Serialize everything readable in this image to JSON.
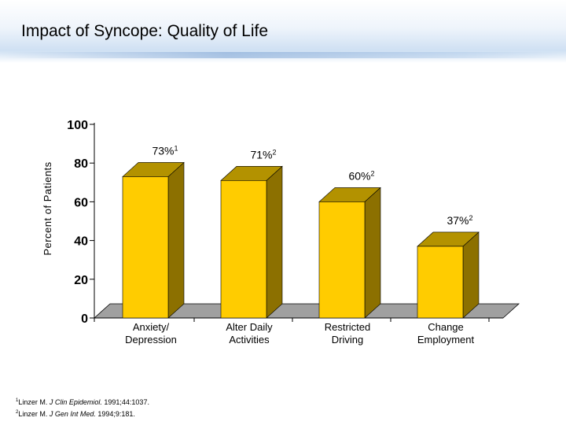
{
  "slide": {
    "title": "Impact of Syncope: Quality of Life"
  },
  "footnotes": [
    {
      "marker": "1",
      "author": "Linzer M. ",
      "journal": "J Clin Epidemiol.",
      "citation": " 1991;44:1037."
    },
    {
      "marker": "2",
      "author": "Linzer M. ",
      "journal": "J Gen Int Med.",
      "citation": " 1994;9:181."
    }
  ],
  "colors": {
    "bar_front": "#FFCC00",
    "bar_side": "#8C7000",
    "bar_top": "#B39200",
    "floor": "#A0A0A0"
  },
  "chart_data": {
    "type": "bar",
    "title": "",
    "ylabel": "Percent of Patients",
    "xlabel": "",
    "ylim": [
      0,
      100
    ],
    "yticks": [
      "0",
      "20",
      "40",
      "60",
      "80",
      "100"
    ],
    "categories": [
      [
        "Anxiety/",
        "Depression"
      ],
      [
        "Alter Daily",
        "Activities"
      ],
      [
        "Restricted",
        "Driving"
      ],
      [
        "Change",
        "Employment"
      ]
    ],
    "values": [
      73,
      71,
      60,
      37
    ],
    "value_labels": [
      "73%",
      "71%",
      "60%",
      "37%"
    ],
    "label_superscripts": [
      "1",
      "2",
      "2",
      "2"
    ],
    "grid": false,
    "legend": "none",
    "style": "3d"
  }
}
